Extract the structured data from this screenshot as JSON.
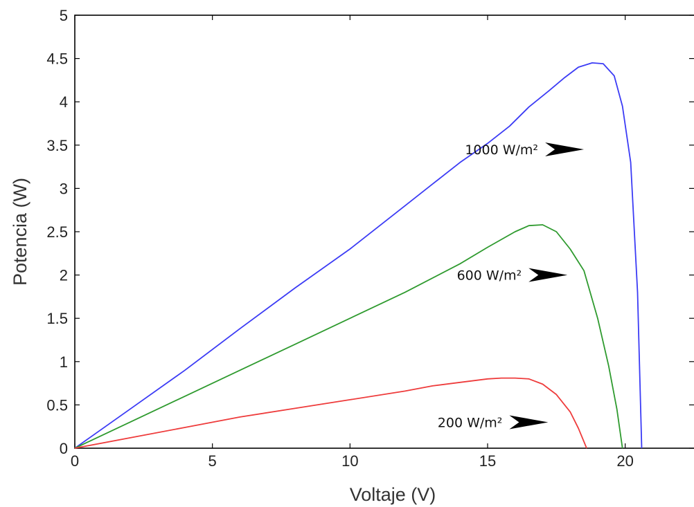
{
  "chart_data": {
    "type": "line",
    "title": "",
    "xlabel": "Voltaje (V)",
    "ylabel": "Potencia (W)",
    "xlim": [
      0,
      22.5
    ],
    "ylim": [
      0,
      5
    ],
    "xticks": [
      "0",
      "5",
      "10",
      "15",
      "20"
    ],
    "yticks": [
      "0",
      "0.5",
      "1",
      "1.5",
      "2",
      "2.5",
      "3",
      "3.5",
      "4",
      "4.5",
      "5"
    ],
    "grid": false,
    "series": [
      {
        "color": "#3b3bf5",
        "x": [
          0,
          2,
          4,
          6,
          8,
          10,
          12,
          13,
          14,
          15,
          15.8,
          16.5,
          17.2,
          17.8,
          18.3,
          18.8,
          19.2,
          19.6,
          19.9,
          20.2,
          20.45,
          20.6
        ],
        "y": [
          0,
          0.45,
          0.9,
          1.38,
          1.85,
          2.3,
          2.8,
          3.05,
          3.3,
          3.52,
          3.72,
          3.94,
          4.12,
          4.28,
          4.4,
          4.45,
          4.44,
          4.3,
          3.95,
          3.3,
          1.8,
          0
        ]
      },
      {
        "color": "#2e9a2e",
        "x": [
          0,
          2,
          4,
          6,
          8,
          10,
          12,
          14,
          15,
          16,
          16.5,
          17,
          17.5,
          18,
          18.5,
          19,
          19.4,
          19.7,
          19.9
        ],
        "y": [
          0,
          0.3,
          0.6,
          0.9,
          1.2,
          1.5,
          1.8,
          2.13,
          2.32,
          2.5,
          2.57,
          2.58,
          2.5,
          2.3,
          2.05,
          1.5,
          0.95,
          0.45,
          0
        ]
      },
      {
        "color": "#ee3b3b",
        "x": [
          0,
          2,
          4,
          6,
          8,
          10,
          12,
          13,
          14,
          15,
          15.5,
          16,
          16.5,
          17,
          17.5,
          18,
          18.3,
          18.6
        ],
        "y": [
          0,
          0.12,
          0.24,
          0.36,
          0.46,
          0.56,
          0.66,
          0.72,
          0.76,
          0.8,
          0.81,
          0.81,
          0.8,
          0.74,
          0.62,
          0.42,
          0.23,
          0
        ]
      }
    ],
    "annotations": [
      {
        "text": "1000 W/m²",
        "arrow_to": [
          18.5,
          3.45
        ]
      },
      {
        "text": "600 W/m²",
        "arrow_to": [
          17.9,
          2.0
        ]
      },
      {
        "text": "200 W/m²",
        "arrow_to": [
          17.2,
          0.3
        ]
      }
    ]
  }
}
